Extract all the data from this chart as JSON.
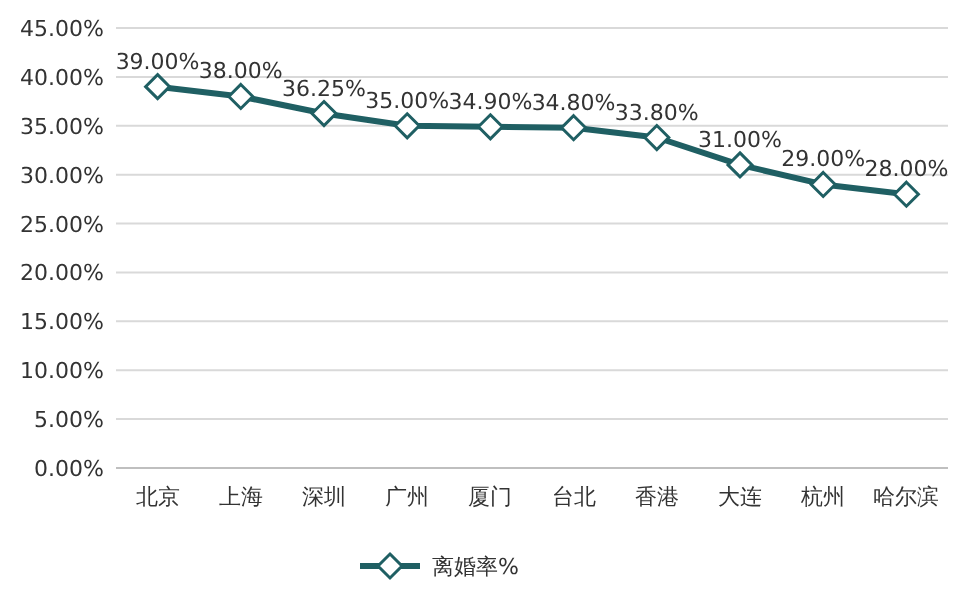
{
  "chart_data": {
    "type": "line",
    "categories": [
      "北京",
      "上海",
      "深圳",
      "广州",
      "厦门",
      "台北",
      "香港",
      "大连",
      "杭州",
      "哈尔滨"
    ],
    "series": [
      {
        "name": "离婚率%",
        "color": "#1f5f63",
        "values": [
          39,
          38,
          36.25,
          35,
          34.9,
          34.8,
          33.8,
          31,
          29,
          28
        ],
        "value_labels": [
          "39.00%",
          "38.00%",
          "36.25%",
          "35.00%",
          "34.90%",
          "34.80%",
          "33.80%",
          "31.00%",
          "29.00%",
          "28.00%"
        ]
      }
    ],
    "ylim": [
      0,
      45
    ],
    "yticks": [
      {
        "value": 0,
        "label": "0.00%"
      },
      {
        "value": 5,
        "label": "5.00%"
      },
      {
        "value": 10,
        "label": "10.00%"
      },
      {
        "value": 15,
        "label": "15.00%"
      },
      {
        "value": 20,
        "label": "20.00%"
      },
      {
        "value": 25,
        "label": "25.00%"
      },
      {
        "value": 30,
        "label": "30.00%"
      },
      {
        "value": 35,
        "label": "35.00%"
      },
      {
        "value": 40,
        "label": "40.00%"
      },
      {
        "value": 45,
        "label": "45.00%"
      }
    ],
    "grid": "y",
    "legend": "bottom",
    "marker": "diamond",
    "line_style": "solid"
  }
}
